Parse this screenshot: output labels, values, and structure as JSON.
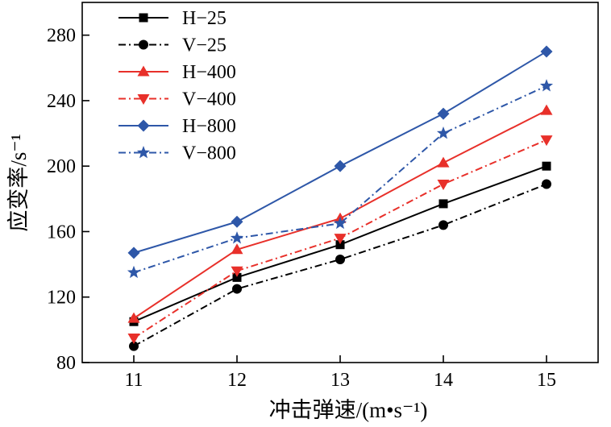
{
  "chart_data": {
    "type": "line",
    "xlabel": "冲击弹速/(m•s⁻¹)",
    "ylabel": "应变率/s⁻¹",
    "x": [
      11,
      12,
      13,
      14,
      15
    ],
    "xlim": [
      10.5,
      15.5
    ],
    "ylim": [
      80,
      300
    ],
    "yticks": [
      80,
      120,
      160,
      200,
      240,
      280
    ],
    "grid": false,
    "legend": "top-left",
    "series": [
      {
        "name": "H−25",
        "values": [
          105,
          132,
          152,
          177,
          200
        ],
        "color": "#000000",
        "marker": "square",
        "dash": "solid"
      },
      {
        "name": "V−25",
        "values": [
          90,
          125,
          143,
          164,
          189
        ],
        "color": "#000000",
        "marker": "circle",
        "dash": "dashdot"
      },
      {
        "name": "H−400",
        "values": [
          107,
          149,
          168,
          202,
          234
        ],
        "color": "#e8302a",
        "marker": "triangle-up",
        "dash": "solid"
      },
      {
        "name": "V−400",
        "values": [
          95,
          136,
          156,
          189,
          216
        ],
        "color": "#e8302a",
        "marker": "triangle-down",
        "dash": "dashdot"
      },
      {
        "name": "H−800",
        "values": [
          147,
          166,
          200,
          232,
          270
        ],
        "color": "#2e57a8",
        "marker": "diamond",
        "dash": "solid"
      },
      {
        "name": "V−800",
        "values": [
          135,
          156,
          165,
          220,
          249
        ],
        "color": "#2e57a8",
        "marker": "star",
        "dash": "dashdot"
      }
    ]
  }
}
